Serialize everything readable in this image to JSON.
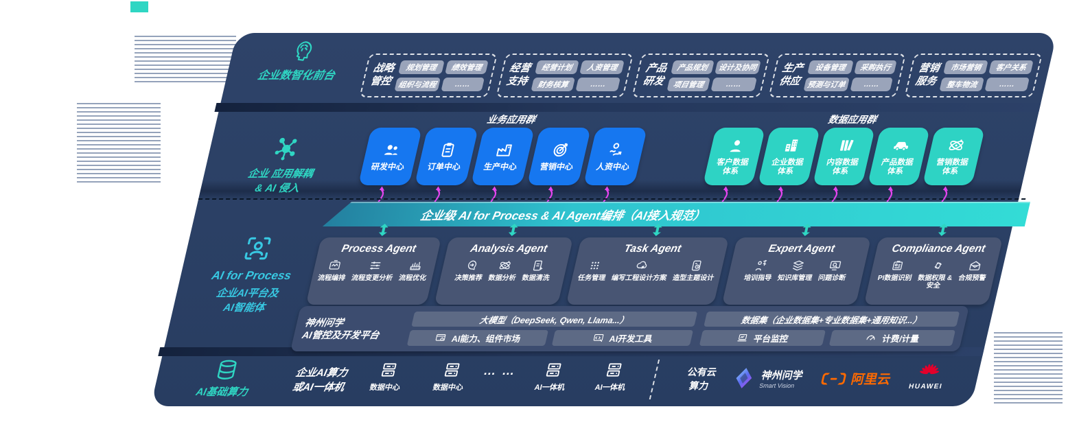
{
  "colors": {
    "accent_teal": "#2fd6c3",
    "accent_blue": "#1677f0",
    "arrow_magenta": "#e645f0",
    "panel_navy": "#2c4168",
    "aliyun_orange": "#ff6a00",
    "huawei_red": "#e4002b"
  },
  "front_layer": {
    "label": "企业数智化前台",
    "icon": "brain-icon",
    "groups": [
      {
        "title": "战略\n管控",
        "chips": [
          "规划管理",
          "绩效管理",
          "组织与流程",
          "……"
        ]
      },
      {
        "title": "经营\n支持",
        "chips": [
          "经营计划",
          "人资管理",
          "财务核算",
          "……"
        ]
      },
      {
        "title": "产品\n研发",
        "chips": [
          "产品规划",
          "设计及协同",
          "项目管理",
          "……"
        ]
      },
      {
        "title": "生产\n供应",
        "chips": [
          "设备管理",
          "采购执行",
          "预测与订单",
          "……"
        ]
      },
      {
        "title": "营销\n服务",
        "chips": [
          "市场营销",
          "客户关系",
          "整车物流",
          "……"
        ]
      }
    ]
  },
  "app_layer": {
    "label": "企业 应用解耦\n& AI 侵入",
    "icon": "molecule-icon",
    "business_title": "业务应用群",
    "business_apps": [
      {
        "label": "研发中心",
        "icon": "team-icon"
      },
      {
        "label": "订单中心",
        "icon": "clipboard-icon"
      },
      {
        "label": "生产中心",
        "icon": "factory-icon"
      },
      {
        "label": "营销中心",
        "icon": "target-icon"
      },
      {
        "label": "人资中心",
        "icon": "hr-icon"
      }
    ],
    "data_title": "数据应用群",
    "data_apps": [
      {
        "label": "客户数据\n体系",
        "icon": "customer-icon"
      },
      {
        "label": "企业数据\n体系",
        "icon": "building-icon"
      },
      {
        "label": "内容数据\n体系",
        "icon": "content-icon"
      },
      {
        "label": "产品数据\n体系",
        "icon": "car-icon"
      },
      {
        "label": "营销数据\n体系",
        "icon": "atom-icon"
      }
    ]
  },
  "orchestration_bar": {
    "label": "企业级 AI for Process & AI Agent编排（AI接入规范）"
  },
  "ai_layer": {
    "label_en": "AI for Process",
    "label_cn": "企业AI平台及\nAI智能体",
    "icon": "person-scan-icon",
    "agents": [
      {
        "title": "Process Agent",
        "items": [
          {
            "label": "流程编排",
            "icon": "workflow-icon"
          },
          {
            "label": "流程变更分析",
            "icon": "flow-change-icon"
          },
          {
            "label": "流程优化",
            "icon": "flow-optimize-icon"
          }
        ]
      },
      {
        "title": "Analysis Agent",
        "items": [
          {
            "label": "决策推荐",
            "icon": "decision-icon"
          },
          {
            "label": "数据分析",
            "icon": "data-analysis-icon"
          },
          {
            "label": "数据清洗",
            "icon": "data-clean-icon"
          }
        ]
      },
      {
        "title": "Task Agent",
        "items": [
          {
            "label": "任务管理",
            "icon": "task-manage-icon"
          },
          {
            "label": "编写工程设计方案",
            "icon": "cloud-edit-icon"
          },
          {
            "label": "造型主题设计",
            "icon": "design-icon"
          }
        ]
      },
      {
        "title": "Expert Agent",
        "items": [
          {
            "label": "培训指导",
            "icon": "training-icon"
          },
          {
            "label": "知识库管理",
            "icon": "knowledge-icon"
          },
          {
            "label": "问题诊断",
            "icon": "diagnosis-icon"
          }
        ]
      },
      {
        "title": "Compliance Agent",
        "items": [
          {
            "label": "PI数据识别",
            "icon": "id-card-icon"
          },
          {
            "label": "数据权限 &\n安全",
            "icon": "permission-icon"
          },
          {
            "label": "合规预警",
            "icon": "alert-icon"
          }
        ]
      }
    ]
  },
  "platform": {
    "name": "神州问学\nAI管控及开发平台",
    "model_header": "大模型（DeepSeek, Qwen, Llama...）",
    "tool_left_1": {
      "label": "AI能力、组件市场",
      "icon": "components-icon"
    },
    "tool_left_2": {
      "label": "AI开发工具",
      "icon": "devtools-icon"
    },
    "dataset_header": "数据集（企业数据集+专业数据集+通用知识...）",
    "tool_right_1": {
      "label": "平台监控",
      "icon": "monitor-icon"
    },
    "tool_right_2": {
      "label": "计费/计量",
      "icon": "gauge-icon"
    }
  },
  "infra": {
    "label": "AI基础算力",
    "icon": "database-icon",
    "enterprise_label": "企业AI算力\n或AI一体机",
    "nodes": [
      {
        "label": "数据中心",
        "icon": "server-icon"
      },
      {
        "label": "数据中心",
        "icon": "server-icon"
      },
      {
        "label": "AI一体机",
        "icon": "server-icon"
      },
      {
        "label": "AI一体机",
        "icon": "server-icon"
      }
    ],
    "ellipsis": "… …",
    "public_cloud": "公有云\n算力",
    "vendors": {
      "smartvision": {
        "name": "神州问学",
        "sub": "Smart Vision",
        "icon": "smartvision-logo"
      },
      "aliyun": {
        "name": "阿里云",
        "icon": "aliyun-logo"
      },
      "huawei": {
        "name": "HUAWEI",
        "icon": "huawei-logo"
      }
    }
  }
}
